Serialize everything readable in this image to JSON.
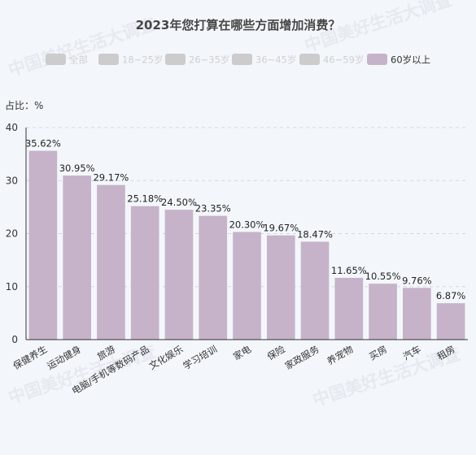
{
  "watermark_text": "中国美好生活大调查",
  "chart_data": {
    "type": "bar",
    "title": "2023年您打算在哪些方面增加消费？",
    "ylabel": "占比：%",
    "xlabel": "",
    "ylim": [
      0,
      40
    ],
    "yticks": [
      0,
      10,
      20,
      30,
      40
    ],
    "grid": true,
    "legend_position": "top",
    "legend": [
      {
        "name": "全部",
        "active": false,
        "color": "#cccccc"
      },
      {
        "name": "18~25岁",
        "active": false,
        "color": "#cccccc"
      },
      {
        "name": "26~35岁",
        "active": false,
        "color": "#cccccc"
      },
      {
        "name": "36~45岁",
        "active": false,
        "color": "#cccccc"
      },
      {
        "name": "46~59岁",
        "active": false,
        "color": "#cccccc"
      },
      {
        "name": "60岁以上",
        "active": true,
        "color": "#c6b3c9"
      }
    ],
    "categories": [
      "保健养生",
      "运动健身",
      "旅游",
      "电脑/手机等数码产品",
      "文化娱乐",
      "学习培训",
      "家电",
      "保险",
      "家政服务",
      "养宠物",
      "买房",
      "汽车",
      "租房"
    ],
    "series": [
      {
        "name": "60岁以上",
        "color": "#c6b3c9",
        "values": [
          35.62,
          30.95,
          29.17,
          25.18,
          24.5,
          23.35,
          20.3,
          19.67,
          18.47,
          11.65,
          10.55,
          9.76,
          6.87
        ],
        "labels": [
          "35.62%",
          "30.95%",
          "29.17%",
          "25.18%",
          "24.50%",
          "23.35%",
          "20.30%",
          "19.67%",
          "18.47%",
          "11.65%",
          "10.55%",
          "9.76%",
          "6.87%"
        ]
      }
    ]
  }
}
